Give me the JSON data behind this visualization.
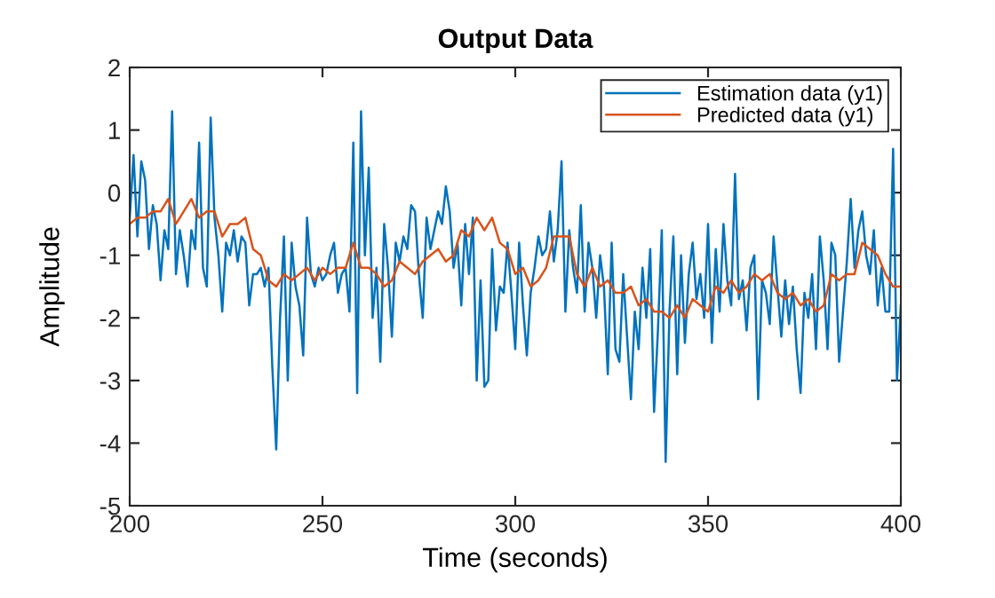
{
  "chart_data": {
    "type": "line",
    "title": "Output Data",
    "xlabel": "Time (seconds)",
    "ylabel": "Amplitude",
    "xlim": [
      200,
      400
    ],
    "xticks": [
      200,
      250,
      300,
      350,
      400
    ],
    "ylim": [
      -5,
      2
    ],
    "yticks": [
      -5,
      -4,
      -3,
      -2,
      -1,
      0,
      1,
      2
    ],
    "grid": false,
    "legend": "top right",
    "marker": "none",
    "line_style": "solid",
    "series": [
      {
        "name": "Estimation data (y1)",
        "color": "#0072bd",
        "x": [
          200,
          201,
          202,
          203,
          204,
          205,
          206,
          207,
          208,
          209,
          210,
          211,
          212,
          213,
          214,
          215,
          216,
          217,
          218,
          219,
          220,
          221,
          222,
          223,
          224,
          225,
          226,
          227,
          228,
          229,
          230,
          231,
          232,
          233,
          234,
          235,
          236,
          237,
          238,
          239,
          240,
          241,
          242,
          243,
          244,
          245,
          246,
          247,
          248,
          249,
          250,
          251,
          252,
          253,
          254,
          255,
          256,
          257,
          258,
          259,
          260,
          261,
          262,
          263,
          264,
          265,
          266,
          267,
          268,
          269,
          270,
          271,
          272,
          273,
          274,
          275,
          276,
          277,
          278,
          279,
          280,
          281,
          282,
          283,
          284,
          285,
          286,
          287,
          288,
          289,
          290,
          291,
          292,
          293,
          294,
          295,
          296,
          297,
          298,
          299,
          300,
          301,
          302,
          303,
          304,
          305,
          306,
          307,
          308,
          309,
          310,
          311,
          312,
          313,
          314,
          315,
          316,
          317,
          318,
          319,
          320,
          321,
          322,
          323,
          324,
          325,
          326,
          327,
          328,
          329,
          330,
          331,
          332,
          333,
          334,
          335,
          336,
          337,
          338,
          339,
          340,
          341,
          342,
          343,
          344,
          345,
          346,
          347,
          348,
          349,
          350,
          351,
          352,
          353,
          354,
          355,
          356,
          357,
          358,
          359,
          360,
          361,
          362,
          363,
          364,
          365,
          366,
          367,
          368,
          369,
          370,
          371,
          372,
          373,
          374,
          375,
          376,
          377,
          378,
          379,
          380,
          381,
          382,
          383,
          384,
          385,
          386,
          387,
          388,
          389,
          390,
          391,
          392,
          393,
          394,
          395,
          396,
          397,
          398,
          399,
          400
        ],
        "values": [
          -0.4,
          0.6,
          -0.7,
          0.5,
          0.2,
          -0.9,
          -0.2,
          -0.5,
          -1.4,
          -0.6,
          -0.9,
          1.3,
          -1.3,
          -0.6,
          -1.0,
          -1.5,
          -0.6,
          -0.9,
          0.8,
          -1.2,
          -1.5,
          1.2,
          -0.4,
          -1.0,
          -1.9,
          -0.8,
          -1.0,
          -0.6,
          -1.1,
          -0.7,
          -0.8,
          -1.8,
          -1.3,
          -1.3,
          -1.2,
          -1.5,
          -1.2,
          -2.8,
          -4.1,
          -2.0,
          -0.7,
          -3.0,
          -0.8,
          -1.5,
          -1.8,
          -2.6,
          -0.4,
          -1.3,
          -1.5,
          -1.2,
          -1.4,
          -1.3,
          -1.0,
          -0.8,
          -1.6,
          -1.3,
          -1.2,
          -1.9,
          0.8,
          -3.2,
          1.3,
          -1.0,
          0.4,
          -2.0,
          -1.2,
          -2.7,
          -0.5,
          -1.2,
          -2.3,
          -0.8,
          -1.1,
          -0.7,
          -0.9,
          -0.2,
          -0.3,
          -1.3,
          -2.0,
          -0.4,
          -0.9,
          -0.6,
          -0.3,
          -0.5,
          0.1,
          -0.3,
          -1.2,
          -0.8,
          -1.8,
          -0.5,
          -1.3,
          -0.4,
          -3.0,
          -1.4,
          -3.1,
          -3.0,
          -0.9,
          -2.2,
          -1.5,
          -1.6,
          -0.8,
          -1.6,
          -2.5,
          -0.8,
          -1.8,
          -2.6,
          -1.6,
          -1.2,
          -0.7,
          -1.0,
          -0.9,
          -0.3,
          -1.1,
          -0.6,
          0.5,
          -1.9,
          -0.6,
          -1.2,
          -1.6,
          -0.2,
          -1.9,
          -0.8,
          -1.2,
          -2.0,
          -1.0,
          -1.5,
          -2.9,
          -0.8,
          -2.5,
          -2.7,
          -1.3,
          -2.3,
          -3.3,
          -1.9,
          -2.5,
          -1.2,
          -2.0,
          -0.9,
          -3.5,
          -2.2,
          -0.6,
          -4.3,
          -1.9,
          -0.7,
          -2.9,
          -1.0,
          -2.4,
          -1.3,
          -0.8,
          -1.7,
          -1.3,
          -2.0,
          -0.5,
          -2.4,
          -0.9,
          -1.9,
          -0.5,
          -1.4,
          -1.8,
          0.3,
          -1.7,
          -1.4,
          -2.2,
          -1.2,
          -1.0,
          -3.3,
          -1.4,
          -1.6,
          -2.1,
          -0.7,
          -1.5,
          -2.3,
          -1.4,
          -2.1,
          -1.5,
          -2.5,
          -3.2,
          -1.6,
          -2.0,
          -1.3,
          -2.5,
          -0.7,
          -1.4,
          -2.5,
          -0.8,
          -1.0,
          -2.7,
          -1.9,
          -1.1,
          -0.1,
          -1.2,
          -0.6,
          -0.3,
          -1.0,
          -1.3,
          -0.6,
          -1.8,
          -1.2,
          -1.9,
          -1.9,
          0.7,
          -3.0,
          -1.8
        ]
      },
      {
        "name": "Predicted data (y1)",
        "color": "#d95319",
        "x": [
          200,
          202,
          204,
          206,
          208,
          210,
          212,
          214,
          216,
          218,
          220,
          222,
          224,
          226,
          228,
          230,
          232,
          234,
          236,
          238,
          240,
          242,
          244,
          246,
          248,
          250,
          252,
          254,
          256,
          258,
          260,
          262,
          264,
          266,
          268,
          270,
          272,
          274,
          276,
          278,
          280,
          282,
          284,
          286,
          288,
          290,
          292,
          294,
          296,
          298,
          300,
          302,
          304,
          306,
          308,
          310,
          312,
          314,
          316,
          318,
          320,
          322,
          324,
          326,
          328,
          330,
          332,
          334,
          336,
          338,
          340,
          342,
          344,
          346,
          348,
          350,
          352,
          354,
          356,
          358,
          360,
          362,
          364,
          366,
          368,
          370,
          372,
          374,
          376,
          378,
          380,
          382,
          384,
          386,
          388,
          390,
          392,
          394,
          396,
          398,
          400
        ],
        "values": [
          -0.5,
          -0.4,
          -0.4,
          -0.3,
          -0.3,
          -0.1,
          -0.5,
          -0.3,
          -0.1,
          -0.4,
          -0.3,
          -0.3,
          -0.7,
          -0.5,
          -0.5,
          -0.4,
          -0.9,
          -1.0,
          -1.4,
          -1.5,
          -1.3,
          -1.4,
          -1.3,
          -1.2,
          -1.4,
          -1.2,
          -1.3,
          -1.2,
          -1.2,
          -0.8,
          -1.2,
          -1.2,
          -1.3,
          -1.5,
          -1.4,
          -1.1,
          -1.2,
          -1.3,
          -1.1,
          -1.0,
          -0.9,
          -1.1,
          -1.0,
          -0.6,
          -0.7,
          -0.4,
          -0.6,
          -0.4,
          -0.8,
          -0.9,
          -1.3,
          -1.2,
          -1.5,
          -1.4,
          -1.2,
          -0.7,
          -0.7,
          -0.7,
          -1.3,
          -1.5,
          -1.2,
          -1.5,
          -1.4,
          -1.6,
          -1.6,
          -1.5,
          -1.8,
          -1.7,
          -1.9,
          -1.9,
          -2.0,
          -1.8,
          -2.0,
          -1.7,
          -1.8,
          -1.9,
          -1.5,
          -1.6,
          -1.4,
          -1.6,
          -1.5,
          -1.3,
          -1.4,
          -1.3,
          -1.6,
          -1.7,
          -1.6,
          -1.8,
          -1.7,
          -1.9,
          -1.8,
          -1.3,
          -1.4,
          -1.3,
          -1.3,
          -0.8,
          -0.9,
          -1.0,
          -1.3,
          -1.5,
          -1.5
        ]
      }
    ]
  }
}
